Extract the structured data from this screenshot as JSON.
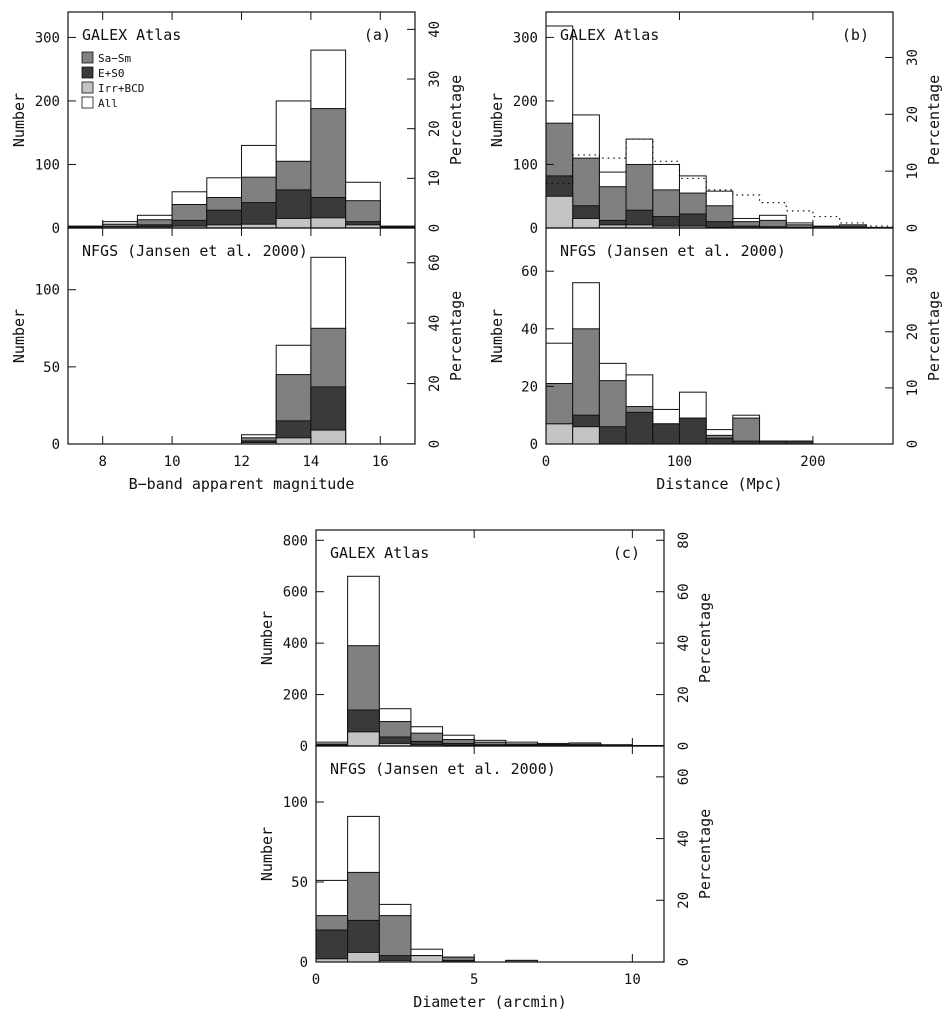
{
  "colors": {
    "sa_sm": "#808080",
    "e_s0": "#3a3a3a",
    "irr_bcd": "#c4c4c4",
    "all": "#ffffff",
    "frame": "#111111"
  },
  "legend": [
    {
      "label": "Sa−Sm",
      "color": "#808080"
    },
    {
      "label": "E+S0",
      "color": "#3a3a3a"
    },
    {
      "label": "Irr+BCD",
      "color": "#c4c4c4"
    },
    {
      "label": "All",
      "color": "#ffffff"
    }
  ],
  "chart_data": [
    {
      "id": "a-top",
      "type": "bar",
      "panel_label": "(a)",
      "title": "GALEX Atlas",
      "xlim": [
        7,
        17
      ],
      "ylim": [
        0,
        340
      ],
      "yticks": [
        0,
        100,
        200,
        300
      ],
      "ylabel": "Number",
      "ylim_right": [
        0,
        43.5
      ],
      "yticks_right": [
        0,
        10,
        20,
        30,
        40
      ],
      "ylabel_right": "Percentage",
      "xlabel": "",
      "bin_edges": [
        7,
        8,
        9,
        10,
        11,
        12,
        13,
        14,
        15,
        16,
        17
      ],
      "series": [
        {
          "name": "All",
          "values": [
            3,
            10,
            20,
            57,
            79,
            130,
            200,
            280,
            72,
            3
          ]
        },
        {
          "name": "Sa−Sm",
          "values": [
            2,
            6,
            13,
            37,
            48,
            80,
            105,
            188,
            43,
            2
          ]
        },
        {
          "name": "E+S0",
          "values": [
            1,
            2,
            5,
            12,
            28,
            40,
            60,
            48,
            10,
            1
          ]
        },
        {
          "name": "Irr+BCD",
          "values": [
            1,
            2,
            2,
            3,
            5,
            6,
            15,
            16,
            5,
            1
          ]
        }
      ]
    },
    {
      "id": "a-bottom",
      "type": "bar",
      "title": "NFGS (Jansen et al. 2000)",
      "xlim": [
        7,
        17
      ],
      "ylim": [
        0,
        140
      ],
      "yticks": [
        0,
        50,
        100
      ],
      "ylabel": "Number",
      "ylim_right": [
        0,
        71.5
      ],
      "yticks_right": [
        0,
        20,
        40,
        60
      ],
      "ylabel_right": "Percentage",
      "xticks": [
        8,
        10,
        12,
        14,
        16
      ],
      "xlabel": "B−band apparent magnitude",
      "bin_edges": [
        12,
        13,
        14,
        15
      ],
      "series": [
        {
          "name": "All",
          "values": [
            6,
            64,
            121
          ]
        },
        {
          "name": "Sa−Sm",
          "values": [
            4,
            45,
            75
          ]
        },
        {
          "name": "E+S0",
          "values": [
            2,
            15,
            37
          ]
        },
        {
          "name": "Irr+BCD",
          "values": [
            1,
            4,
            9
          ]
        }
      ]
    },
    {
      "id": "b-top",
      "type": "bar",
      "panel_label": "(b)",
      "title": "GALEX Atlas",
      "xlim": [
        0,
        260
      ],
      "ylim": [
        0,
        340
      ],
      "yticks": [
        0,
        100,
        200,
        300
      ],
      "ylabel": "Number",
      "ylim_right": [
        0,
        38
      ],
      "yticks_right": [
        0,
        10,
        20,
        30
      ],
      "ylabel_right": "Percentage",
      "xlabel": "",
      "bin_edges": [
        0,
        20,
        40,
        60,
        80,
        100,
        120,
        140,
        160,
        180,
        200,
        220,
        240,
        260
      ],
      "series": [
        {
          "name": "All",
          "values": [
            318,
            178,
            88,
            140,
            100,
            82,
            58,
            15,
            20,
            8,
            3,
            5,
            1
          ]
        },
        {
          "name": "Sa−Sm",
          "values": [
            165,
            110,
            65,
            100,
            60,
            55,
            35,
            10,
            12,
            5,
            2,
            3,
            0
          ]
        },
        {
          "name": "E+S0",
          "values": [
            82,
            35,
            12,
            28,
            18,
            22,
            10,
            3,
            2,
            1,
            0,
            1,
            0
          ]
        },
        {
          "name": "Irr+BCD",
          "values": [
            50,
            15,
            5,
            5,
            3,
            3,
            1,
            0,
            0,
            0,
            0,
            0,
            0
          ]
        }
      ],
      "overlay": {
        "name": "",
        "style": "dotted",
        "values": [
          70,
          115,
          110,
          140,
          105,
          78,
          60,
          52,
          40,
          27,
          18,
          8,
          3
        ]
      }
    },
    {
      "id": "b-bottom",
      "type": "bar",
      "title": "NFGS (Jansen et al. 2000)",
      "xlim": [
        0,
        260
      ],
      "ylim": [
        0,
        75
      ],
      "yticks": [
        0,
        20,
        40,
        60
      ],
      "ylabel": "Number",
      "ylim_right": [
        0,
        38.5
      ],
      "yticks_right": [
        0,
        10,
        20,
        30
      ],
      "ylabel_right": "Percentage",
      "xticks": [
        0,
        100,
        200
      ],
      "xlabel": "Distance (Mpc)",
      "bin_edges": [
        0,
        20,
        40,
        60,
        80,
        100,
        120,
        140,
        160,
        180,
        200
      ],
      "series": [
        {
          "name": "All",
          "values": [
            35,
            56,
            28,
            24,
            12,
            18,
            5,
            10,
            1,
            1
          ]
        },
        {
          "name": "Sa−Sm",
          "values": [
            21,
            40,
            22,
            13,
            7,
            9,
            3,
            9,
            1,
            1
          ]
        },
        {
          "name": "E+S0",
          "values": [
            7,
            10,
            6,
            11,
            7,
            9,
            2,
            1,
            1,
            1
          ]
        },
        {
          "name": "Irr+BCD",
          "values": [
            7,
            6,
            0,
            0,
            0,
            0,
            0,
            0,
            0,
            0
          ]
        }
      ]
    },
    {
      "id": "c-top",
      "type": "bar",
      "panel_label": "(c)",
      "title": "GALEX Atlas",
      "xlim": [
        0,
        11
      ],
      "ylim": [
        0,
        840
      ],
      "yticks": [
        0,
        200,
        400,
        600,
        800
      ],
      "ylabel": "Number",
      "ylim_right": [
        0,
        84
      ],
      "yticks_right": [
        0,
        20,
        40,
        60,
        80
      ],
      "ylabel_right": "Percentage",
      "xlabel": "",
      "bin_edges": [
        0,
        1,
        2,
        3,
        4,
        5,
        6,
        7,
        8,
        9,
        10,
        11
      ],
      "series": [
        {
          "name": "All",
          "values": [
            15,
            660,
            145,
            75,
            42,
            22,
            15,
            10,
            12,
            5,
            2
          ]
        },
        {
          "name": "Sa−Sm",
          "values": [
            8,
            390,
            95,
            50,
            25,
            15,
            8,
            6,
            7,
            3,
            1
          ]
        },
        {
          "name": "E+S0",
          "values": [
            4,
            140,
            35,
            18,
            10,
            5,
            4,
            2,
            3,
            1,
            0
          ]
        },
        {
          "name": "Irr+BCD",
          "values": [
            3,
            55,
            10,
            5,
            3,
            2,
            1,
            1,
            1,
            0,
            0
          ]
        }
      ]
    },
    {
      "id": "c-bottom",
      "type": "bar",
      "title": "NFGS (Jansen et al. 2000)",
      "xlim": [
        0,
        11
      ],
      "ylim": [
        0,
        135
      ],
      "yticks": [
        0,
        50,
        100
      ],
      "ylabel": "Number",
      "ylim_right": [
        0,
        70
      ],
      "yticks_right": [
        0,
        20,
        40,
        60
      ],
      "ylabel_right": "Percentage",
      "xticks": [
        0,
        5,
        10
      ],
      "xlabel": "Diameter (arcmin)",
      "bin_edges": [
        0,
        1,
        2,
        3,
        4,
        5,
        6,
        7
      ],
      "series": [
        {
          "name": "All",
          "values": [
            51,
            91,
            36,
            8,
            3,
            0,
            1
          ]
        },
        {
          "name": "Sa−Sm",
          "values": [
            29,
            56,
            29,
            4,
            3,
            0,
            1
          ]
        },
        {
          "name": "E+S0",
          "values": [
            20,
            26,
            4,
            1,
            1,
            0,
            0
          ]
        },
        {
          "name": "Irr+BCD",
          "values": [
            2,
            6,
            1,
            4,
            0,
            0,
            0
          ]
        }
      ]
    }
  ]
}
